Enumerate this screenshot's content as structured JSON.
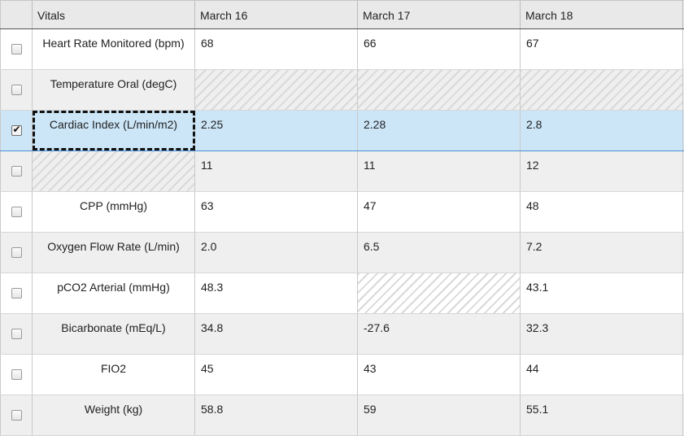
{
  "table": {
    "headers": [
      "",
      "Vitals",
      "March 16",
      "March 17",
      "March 18"
    ],
    "rows": [
      {
        "checked": false,
        "vital": "Heart Rate Monitored (bpm)",
        "values": [
          "68",
          "66",
          "67"
        ]
      },
      {
        "checked": false,
        "vital": "Temperature Oral (degC)",
        "values": [
          "",
          "",
          ""
        ]
      },
      {
        "checked": true,
        "vital": "Cardiac Index (L/min/m2)",
        "values": [
          "2.25",
          "2.28",
          "2.8"
        ]
      },
      {
        "checked": false,
        "vital": "",
        "values": [
          "11",
          "11",
          "12"
        ]
      },
      {
        "checked": false,
        "vital": "CPP (mmHg)",
        "values": [
          "63",
          "47",
          "48"
        ]
      },
      {
        "checked": false,
        "vital": "Oxygen Flow Rate (L/min)",
        "values": [
          "2.0",
          "6.5",
          "7.2"
        ]
      },
      {
        "checked": false,
        "vital": "pCO2 Arterial (mmHg)",
        "values": [
          "48.3",
          "",
          "43.1"
        ]
      },
      {
        "checked": false,
        "vital": "Bicarbonate (mEq/L)",
        "values": [
          "34.8",
          "-27.6",
          "32.3"
        ]
      },
      {
        "checked": false,
        "vital": "FIO2",
        "values": [
          "45",
          "43",
          "44"
        ]
      },
      {
        "checked": false,
        "vital": "Weight (kg)",
        "values": [
          "58.8",
          "59",
          "55.1"
        ]
      }
    ]
  },
  "colors": {
    "selected_row": "#cce6f8",
    "selected_border": "#4a90d9",
    "even_row": "#efefef",
    "header": "#e9e9e9"
  }
}
